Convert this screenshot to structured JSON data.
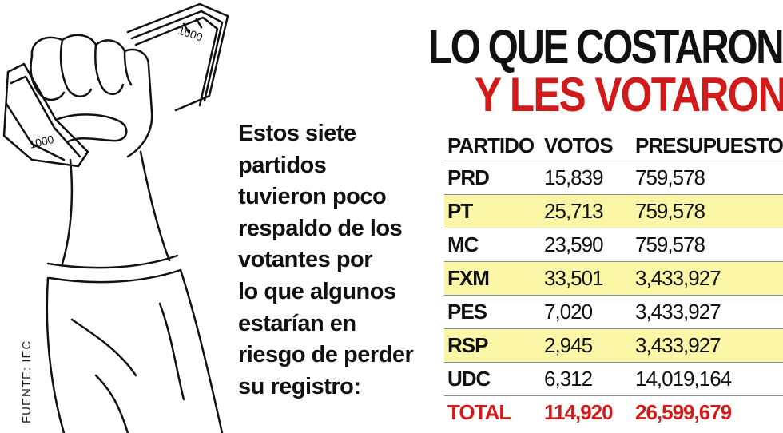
{
  "title": {
    "line1": "LO QUE COSTARON",
    "line2": "Y LES VOTARON"
  },
  "description": [
    "Estos siete",
    "partidos",
    "tuvieron poco",
    "respaldo de los",
    "votantes por",
    "lo que algunos",
    "estarían en",
    "riesgo de perder",
    "su registro:"
  ],
  "source": "FUENTE: IEC",
  "illustration": {
    "icon": "fist-holding-money-icon",
    "bill_labels": [
      "1000",
      "1000"
    ]
  },
  "table": {
    "headers": {
      "party": "PARTIDO",
      "votes": "VOTOS",
      "budget": "PRESUPUESTO"
    },
    "rows": [
      {
        "party": "PRD",
        "votes": "15,839",
        "budget": "759,578"
      },
      {
        "party": "PT",
        "votes": "25,713",
        "budget": "759,578"
      },
      {
        "party": "MC",
        "votes": "23,590",
        "budget": "759,578"
      },
      {
        "party": "FXM",
        "votes": "33,501",
        "budget": "3,433,927"
      },
      {
        "party": "PES",
        "votes": "7,020",
        "budget": "3,433,927"
      },
      {
        "party": "RSP",
        "votes": "2,945",
        "budget": "3,433,927"
      },
      {
        "party": "UDC",
        "votes": "6,312",
        "budget": "14,019,164"
      }
    ],
    "total": {
      "label": "TOTAL",
      "votes": "114,920",
      "budget": "26,599,679"
    }
  },
  "colors": {
    "accent_red": "#d21a1a",
    "highlight_yellow": "#fbf6a6",
    "text": "#111111"
  }
}
